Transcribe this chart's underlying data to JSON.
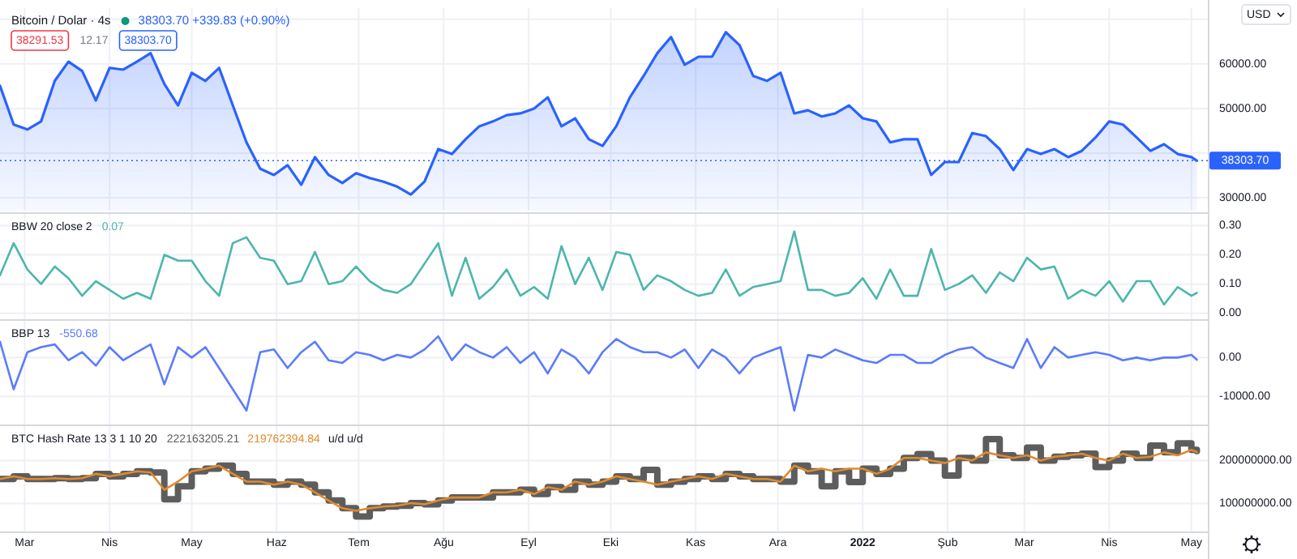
{
  "chart_data": [
    {
      "type": "area",
      "title": "Bitcoin / Dolar · 4s",
      "subtitle": "38303.70 +339.83 (+0.90%)",
      "annotations": [
        "38291.53",
        "12.17",
        "38303.70",
        "USD"
      ],
      "x": [
        "2021-02-20",
        "2021-02-25",
        "2021-03-02",
        "2021-03-07",
        "2021-03-12",
        "2021-03-17",
        "2021-03-22",
        "2021-03-27",
        "2021-04-01",
        "2021-04-06",
        "2021-04-11",
        "2021-04-16",
        "2021-04-21",
        "2021-04-26",
        "2021-05-01",
        "2021-05-06",
        "2021-05-11",
        "2021-05-16",
        "2021-05-21",
        "2021-05-26",
        "2021-05-31",
        "2021-06-05",
        "2021-06-10",
        "2021-06-15",
        "2021-06-20",
        "2021-06-25",
        "2021-06-30",
        "2021-07-05",
        "2021-07-10",
        "2021-07-15",
        "2021-07-20",
        "2021-07-25",
        "2021-07-30",
        "2021-08-04",
        "2021-08-09",
        "2021-08-14",
        "2021-08-19",
        "2021-08-24",
        "2021-08-29",
        "2021-09-03",
        "2021-09-08",
        "2021-09-13",
        "2021-09-18",
        "2021-09-23",
        "2021-09-28",
        "2021-10-03",
        "2021-10-08",
        "2021-10-13",
        "2021-10-18",
        "2021-10-23",
        "2021-10-28",
        "2021-11-02",
        "2021-11-07",
        "2021-11-12",
        "2021-11-17",
        "2021-11-22",
        "2021-11-27",
        "2021-12-02",
        "2021-12-07",
        "2021-12-12",
        "2021-12-17",
        "2021-12-22",
        "2021-12-27",
        "2022-01-01",
        "2022-01-06",
        "2022-01-11",
        "2022-01-16",
        "2022-01-21",
        "2022-01-26",
        "2022-01-31",
        "2022-02-05",
        "2022-02-10",
        "2022-02-15",
        "2022-02-20",
        "2022-02-25",
        "2022-03-02",
        "2022-03-07",
        "2022-03-12",
        "2022-03-17",
        "2022-03-22",
        "2022-03-27",
        "2022-04-01",
        "2022-04-06",
        "2022-04-11",
        "2022-04-16",
        "2022-04-21",
        "2022-04-26",
        "2022-05-01",
        "2022-05-03"
      ],
      "xlim": [
        "2021-02-20",
        "2022-05-07"
      ],
      "xticks": [
        {
          "value": "2021-03-01",
          "label": null
        },
        {
          "value": "2021-04-01",
          "label": null
        },
        {
          "value": "2021-05-01",
          "label": null
        },
        {
          "value": "2021-06-01",
          "label": null
        },
        {
          "value": "2021-07-01",
          "label": null
        },
        {
          "value": "2021-08-01",
          "label": null
        },
        {
          "value": "2021-09-01",
          "label": null
        },
        {
          "value": "2021-10-01",
          "label": null
        },
        {
          "value": "2021-11-01",
          "label": null
        },
        {
          "value": "2021-12-01",
          "label": null
        },
        {
          "value": "2022-01-01",
          "label": null
        },
        {
          "value": "2022-02-01",
          "label": null
        },
        {
          "value": "2022-03-01",
          "label": null
        },
        {
          "value": "2022-04-01",
          "label": null
        },
        {
          "value": "2022-05-01",
          "label": null
        }
      ],
      "ylim": [
        27100,
        72500
      ],
      "yticks": [
        {
          "value": 30000,
          "label": "30000.00"
        },
        {
          "value": 40000,
          "label": null
        },
        {
          "value": 50000,
          "label": "50000.00"
        },
        {
          "value": 60000,
          "label": "60000.00"
        },
        {
          "value": 70000,
          "label": null
        }
      ],
      "grid": true,
      "tick_labels": "y",
      "ref_lines": [
        {
          "axis": "y",
          "value": 38303.7,
          "label": "38303.70",
          "color": "#2962ff",
          "line_style": "dotted"
        }
      ],
      "series": [
        {
          "color": "#2962ff",
          "values": [
            55100,
            46400,
            45300,
            47100,
            56200,
            60500,
            58400,
            51800,
            59100,
            58700,
            60500,
            62400,
            55500,
            50700,
            58000,
            56200,
            59100,
            50700,
            42400,
            36500,
            35100,
            37300,
            32900,
            39100,
            35100,
            33300,
            35500,
            34400,
            33600,
            32500,
            30700,
            33600,
            40900,
            39800,
            43100,
            46000,
            47100,
            48500,
            48900,
            50000,
            52500,
            46000,
            47800,
            43100,
            41600,
            46000,
            52500,
            57300,
            62400,
            66000,
            59800,
            61600,
            61600,
            67100,
            64200,
            57300,
            56200,
            58000,
            48900,
            49600,
            48200,
            48900,
            50700,
            47800,
            47100,
            42400,
            43100,
            43100,
            35100,
            38000,
            38000,
            44500,
            43800,
            40900,
            36200,
            40900,
            39800,
            40900,
            39100,
            40500,
            43500,
            47100,
            46400,
            43500,
            40500,
            42000,
            39800,
            39100,
            38303.7
          ]
        }
      ]
    },
    {
      "type": "line",
      "title": "BBW 20 close 2",
      "annotations": [
        "0.07"
      ],
      "x": [
        "2021-02-20",
        "2021-02-25",
        "2021-03-02",
        "2021-03-07",
        "2021-03-12",
        "2021-03-17",
        "2021-03-22",
        "2021-03-27",
        "2021-04-01",
        "2021-04-06",
        "2021-04-11",
        "2021-04-16",
        "2021-04-21",
        "2021-04-26",
        "2021-05-01",
        "2021-05-06",
        "2021-05-11",
        "2021-05-16",
        "2021-05-21",
        "2021-05-26",
        "2021-05-31",
        "2021-06-05",
        "2021-06-10",
        "2021-06-15",
        "2021-06-20",
        "2021-06-25",
        "2021-06-30",
        "2021-07-05",
        "2021-07-10",
        "2021-07-15",
        "2021-07-20",
        "2021-07-25",
        "2021-07-30",
        "2021-08-04",
        "2021-08-09",
        "2021-08-14",
        "2021-08-19",
        "2021-08-24",
        "2021-08-29",
        "2021-09-03",
        "2021-09-08",
        "2021-09-13",
        "2021-09-18",
        "2021-09-23",
        "2021-09-28",
        "2021-10-03",
        "2021-10-08",
        "2021-10-13",
        "2021-10-18",
        "2021-10-23",
        "2021-10-28",
        "2021-11-02",
        "2021-11-07",
        "2021-11-12",
        "2021-11-17",
        "2021-11-22",
        "2021-11-27",
        "2021-12-02",
        "2021-12-07",
        "2021-12-12",
        "2021-12-17",
        "2021-12-22",
        "2021-12-27",
        "2022-01-01",
        "2022-01-06",
        "2022-01-11",
        "2022-01-16",
        "2022-01-21",
        "2022-01-26",
        "2022-01-31",
        "2022-02-05",
        "2022-02-10",
        "2022-02-15",
        "2022-02-20",
        "2022-02-25",
        "2022-03-02",
        "2022-03-07",
        "2022-03-12",
        "2022-03-17",
        "2022-03-22",
        "2022-03-27",
        "2022-04-01",
        "2022-04-06",
        "2022-04-11",
        "2022-04-16",
        "2022-04-21",
        "2022-04-26",
        "2022-05-01",
        "2022-05-03"
      ],
      "xlim": [
        "2021-02-20",
        "2022-05-07"
      ],
      "xticks": [
        {
          "value": "2021-03-01",
          "label": null
        },
        {
          "value": "2021-04-01",
          "label": null
        },
        {
          "value": "2021-05-01",
          "label": null
        },
        {
          "value": "2021-06-01",
          "label": null
        },
        {
          "value": "2021-07-01",
          "label": null
        },
        {
          "value": "2021-08-01",
          "label": null
        },
        {
          "value": "2021-09-01",
          "label": null
        },
        {
          "value": "2021-10-01",
          "label": null
        },
        {
          "value": "2021-11-01",
          "label": null
        },
        {
          "value": "2021-12-01",
          "label": null
        },
        {
          "value": "2022-01-01",
          "label": null
        },
        {
          "value": "2022-02-01",
          "label": null
        },
        {
          "value": "2022-03-01",
          "label": null
        },
        {
          "value": "2022-04-01",
          "label": null
        },
        {
          "value": "2022-05-01",
          "label": null
        }
      ],
      "ylim": [
        -0.02,
        0.34
      ],
      "yticks": [
        {
          "value": 0,
          "label": "0.00"
        },
        {
          "value": 0.1,
          "label": "0.10"
        },
        {
          "value": 0.2,
          "label": "0.20"
        },
        {
          "value": 0.3,
          "label": "0.30"
        }
      ],
      "grid": true,
      "tick_labels": "y",
      "series": [
        {
          "color": "#4db6ac",
          "values": [
            0.13,
            0.24,
            0.15,
            0.1,
            0.16,
            0.12,
            0.06,
            0.11,
            0.08,
            0.05,
            0.07,
            0.05,
            0.2,
            0.18,
            0.18,
            0.11,
            0.06,
            0.24,
            0.26,
            0.19,
            0.18,
            0.1,
            0.11,
            0.21,
            0.1,
            0.11,
            0.16,
            0.11,
            0.08,
            0.07,
            0.1,
            0.17,
            0.24,
            0.06,
            0.19,
            0.05,
            0.09,
            0.15,
            0.06,
            0.09,
            0.05,
            0.23,
            0.1,
            0.19,
            0.08,
            0.21,
            0.2,
            0.08,
            0.13,
            0.11,
            0.08,
            0.06,
            0.07,
            0.15,
            0.06,
            0.09,
            0.1,
            0.11,
            0.28,
            0.08,
            0.08,
            0.06,
            0.07,
            0.12,
            0.05,
            0.15,
            0.06,
            0.06,
            0.22,
            0.08,
            0.1,
            0.13,
            0.07,
            0.14,
            0.11,
            0.19,
            0.15,
            0.16,
            0.05,
            0.08,
            0.06,
            0.11,
            0.04,
            0.11,
            0.11,
            0.03,
            0.09,
            0.06,
            0.07
          ]
        }
      ]
    },
    {
      "type": "line",
      "title": "BBP 13",
      "annotations": [
        "-550.68"
      ],
      "x": [
        "2021-02-20",
        "2021-02-25",
        "2021-03-02",
        "2021-03-07",
        "2021-03-12",
        "2021-03-17",
        "2021-03-22",
        "2021-03-27",
        "2021-04-01",
        "2021-04-06",
        "2021-04-11",
        "2021-04-16",
        "2021-04-21",
        "2021-04-26",
        "2021-05-01",
        "2021-05-06",
        "2021-05-11",
        "2021-05-16",
        "2021-05-21",
        "2021-05-26",
        "2021-05-31",
        "2021-06-05",
        "2021-06-10",
        "2021-06-15",
        "2021-06-20",
        "2021-06-25",
        "2021-06-30",
        "2021-07-05",
        "2021-07-10",
        "2021-07-15",
        "2021-07-20",
        "2021-07-25",
        "2021-07-30",
        "2021-08-04",
        "2021-08-09",
        "2021-08-14",
        "2021-08-19",
        "2021-08-24",
        "2021-08-29",
        "2021-09-03",
        "2021-09-08",
        "2021-09-13",
        "2021-09-18",
        "2021-09-23",
        "2021-09-28",
        "2021-10-03",
        "2021-10-08",
        "2021-10-13",
        "2021-10-18",
        "2021-10-23",
        "2021-10-28",
        "2021-11-02",
        "2021-11-07",
        "2021-11-12",
        "2021-11-17",
        "2021-11-22",
        "2021-11-27",
        "2021-12-02",
        "2021-12-07",
        "2021-12-12",
        "2021-12-17",
        "2021-12-22",
        "2021-12-27",
        "2022-01-01",
        "2022-01-06",
        "2022-01-11",
        "2022-01-16",
        "2022-01-21",
        "2022-01-26",
        "2022-01-31",
        "2022-02-05",
        "2022-02-10",
        "2022-02-15",
        "2022-02-20",
        "2022-02-25",
        "2022-03-02",
        "2022-03-07",
        "2022-03-12",
        "2022-03-17",
        "2022-03-22",
        "2022-03-27",
        "2022-04-01",
        "2022-04-06",
        "2022-04-11",
        "2022-04-16",
        "2022-04-21",
        "2022-04-26",
        "2022-05-01",
        "2022-05-03"
      ],
      "xlim": [
        "2021-02-20",
        "2022-05-07"
      ],
      "xticks": [
        {
          "value": "2021-03-01",
          "label": null
        },
        {
          "value": "2021-04-01",
          "label": null
        },
        {
          "value": "2021-05-01",
          "label": null
        },
        {
          "value": "2021-06-01",
          "label": null
        },
        {
          "value": "2021-07-01",
          "label": null
        },
        {
          "value": "2021-08-01",
          "label": null
        },
        {
          "value": "2021-09-01",
          "label": null
        },
        {
          "value": "2021-10-01",
          "label": null
        },
        {
          "value": "2021-11-01",
          "label": null
        },
        {
          "value": "2021-12-01",
          "label": null
        },
        {
          "value": "2022-01-01",
          "label": null
        },
        {
          "value": "2022-02-01",
          "label": null
        },
        {
          "value": "2022-03-01",
          "label": null
        },
        {
          "value": "2022-04-01",
          "label": null
        },
        {
          "value": "2022-05-01",
          "label": null
        }
      ],
      "ylim": [
        -17300,
        9500
      ],
      "yticks": [
        {
          "value": -10000,
          "label": "-10000.00"
        },
        {
          "value": 0,
          "label": "0.00"
        }
      ],
      "grid": true,
      "tick_labels": "y",
      "series": [
        {
          "color": "#5b7cfa",
          "values": [
            4100,
            -8200,
            1400,
            2700,
            3400,
            -700,
            1400,
            -2100,
            2700,
            -700,
            1400,
            3400,
            -6900,
            2700,
            0,
            2700,
            -2700,
            -8200,
            -13700,
            1400,
            2100,
            -2700,
            1400,
            4100,
            -700,
            -1400,
            1400,
            700,
            -700,
            700,
            0,
            2100,
            5500,
            -700,
            3400,
            1400,
            0,
            2700,
            -1400,
            1400,
            -4100,
            2100,
            0,
            -4100,
            1400,
            4800,
            2700,
            1400,
            1400,
            0,
            2100,
            -2700,
            2100,
            0,
            -4100,
            0,
            1400,
            2700,
            -13700,
            700,
            0,
            2100,
            700,
            -700,
            -1400,
            700,
            700,
            -1400,
            -1400,
            700,
            2100,
            2700,
            0,
            -1400,
            -2700,
            4800,
            -2700,
            2700,
            0,
            700,
            1400,
            700,
            -700,
            0,
            -700,
            0,
            0,
            700,
            -550.68
          ]
        }
      ]
    },
    {
      "type": "line",
      "title": "BTC Hash Rate 13 3 1 10 20",
      "annotations": [
        "222163205.21",
        "219762394.84",
        "u/d u/d"
      ],
      "x": [
        "2021-02-20",
        "2021-02-25",
        "2021-03-02",
        "2021-03-07",
        "2021-03-12",
        "2021-03-17",
        "2021-03-22",
        "2021-03-27",
        "2021-04-01",
        "2021-04-06",
        "2021-04-11",
        "2021-04-16",
        "2021-04-21",
        "2021-04-26",
        "2021-05-01",
        "2021-05-06",
        "2021-05-11",
        "2021-05-16",
        "2021-05-21",
        "2021-05-26",
        "2021-05-31",
        "2021-06-05",
        "2021-06-10",
        "2021-06-15",
        "2021-06-20",
        "2021-06-25",
        "2021-06-30",
        "2021-07-05",
        "2021-07-10",
        "2021-07-15",
        "2021-07-20",
        "2021-07-25",
        "2021-07-30",
        "2021-08-04",
        "2021-08-09",
        "2021-08-14",
        "2021-08-19",
        "2021-08-24",
        "2021-08-29",
        "2021-09-03",
        "2021-09-08",
        "2021-09-13",
        "2021-09-18",
        "2021-09-23",
        "2021-09-28",
        "2021-10-03",
        "2021-10-08",
        "2021-10-13",
        "2021-10-18",
        "2021-10-23",
        "2021-10-28",
        "2021-11-02",
        "2021-11-07",
        "2021-11-12",
        "2021-11-17",
        "2021-11-22",
        "2021-11-27",
        "2021-12-02",
        "2021-12-07",
        "2021-12-12",
        "2021-12-17",
        "2021-12-22",
        "2021-12-27",
        "2022-01-01",
        "2022-01-06",
        "2022-01-11",
        "2022-01-16",
        "2022-01-21",
        "2022-01-26",
        "2022-01-31",
        "2022-02-05",
        "2022-02-10",
        "2022-02-15",
        "2022-02-20",
        "2022-02-25",
        "2022-03-02",
        "2022-03-07",
        "2022-03-12",
        "2022-03-17",
        "2022-03-22",
        "2022-03-27",
        "2022-04-01",
        "2022-04-06",
        "2022-04-11",
        "2022-04-16",
        "2022-04-21",
        "2022-04-26",
        "2022-05-01",
        "2022-05-03"
      ],
      "xlim": [
        "2021-02-20",
        "2022-05-07"
      ],
      "xticks": [
        {
          "value": "2021-03-01",
          "label": "Mar"
        },
        {
          "value": "2021-04-01",
          "label": "Nis"
        },
        {
          "value": "2021-05-01",
          "label": "May"
        },
        {
          "value": "2021-06-01",
          "label": "Haz"
        },
        {
          "value": "2021-07-01",
          "label": "Tem"
        },
        {
          "value": "2021-08-01",
          "label": "Ağu"
        },
        {
          "value": "2021-09-01",
          "label": "Eyl"
        },
        {
          "value": "2021-10-01",
          "label": "Eki"
        },
        {
          "value": "2021-11-01",
          "label": "Kas"
        },
        {
          "value": "2021-12-01",
          "label": "Ara"
        },
        {
          "value": "2022-01-01",
          "label": "2022"
        },
        {
          "value": "2022-02-01",
          "label": "Şub"
        },
        {
          "value": "2022-03-01",
          "label": "Mar"
        },
        {
          "value": "2022-04-01",
          "label": "Nis"
        },
        {
          "value": "2022-05-01",
          "label": "May"
        }
      ],
      "ylim": [
        35000000,
        280000000
      ],
      "yticks": [
        {
          "value": 100000000,
          "label": "100000000.00"
        },
        {
          "value": 200000000,
          "label": "200000000.00"
        }
      ],
      "grid": true,
      "series": [
        {
          "type": "step",
          "color": "#5d5d5d",
          "values": [
            157000000,
            163000000,
            157000000,
            157000000,
            159000000,
            157000000,
            159000000,
            169000000,
            163000000,
            169000000,
            175000000,
            172000000,
            110000000,
            140000000,
            175000000,
            181000000,
            188000000,
            169000000,
            151000000,
            151000000,
            144000000,
            151000000,
            144000000,
            126000000,
            107000000,
            89000000,
            70000000,
            89000000,
            93000000,
            95000000,
            101000000,
            98000000,
            107000000,
            114000000,
            114000000,
            114000000,
            126000000,
            126000000,
            132000000,
            122000000,
            138000000,
            132000000,
            151000000,
            144000000,
            151000000,
            163000000,
            157000000,
            178000000,
            144000000,
            151000000,
            157000000,
            163000000,
            157000000,
            169000000,
            163000000,
            157000000,
            157000000,
            151000000,
            188000000,
            175000000,
            140000000,
            175000000,
            150000000,
            181000000,
            169000000,
            181000000,
            206000000,
            215000000,
            200000000,
            165000000,
            206000000,
            200000000,
            250000000,
            212000000,
            206000000,
            230000000,
            200000000,
            209000000,
            212000000,
            216000000,
            185000000,
            200000000,
            216000000,
            206000000,
            235000000,
            219000000,
            240000000,
            225000000,
            222163205.21
          ]
        },
        {
          "color": "#e08a2c",
          "values": [
            157000000,
            163000000,
            157000000,
            157000000,
            159000000,
            157000000,
            159000000,
            169000000,
            163000000,
            169000000,
            175000000,
            172000000,
            132000000,
            151000000,
            175000000,
            181000000,
            188000000,
            169000000,
            151000000,
            151000000,
            144000000,
            151000000,
            144000000,
            126000000,
            107000000,
            89000000,
            83000000,
            89000000,
            93000000,
            95000000,
            101000000,
            98000000,
            107000000,
            114000000,
            114000000,
            114000000,
            126000000,
            126000000,
            132000000,
            122000000,
            138000000,
            132000000,
            151000000,
            144000000,
            151000000,
            163000000,
            157000000,
            151000000,
            144000000,
            151000000,
            157000000,
            163000000,
            157000000,
            169000000,
            163000000,
            157000000,
            157000000,
            151000000,
            188000000,
            175000000,
            181000000,
            175000000,
            181000000,
            181000000,
            169000000,
            181000000,
            206000000,
            206000000,
            200000000,
            194000000,
            206000000,
            200000000,
            219000000,
            212000000,
            206000000,
            212000000,
            200000000,
            209000000,
            212000000,
            216000000,
            206000000,
            200000000,
            216000000,
            206000000,
            209000000,
            219000000,
            212000000,
            225000000,
            219762394.84
          ]
        }
      ]
    }
  ]
}
